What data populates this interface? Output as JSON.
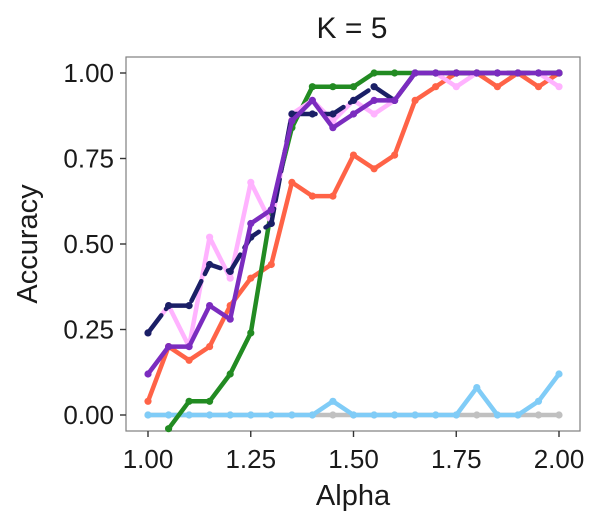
{
  "chart_data": {
    "type": "line",
    "title": "K = 5",
    "xlabel": "Alpha",
    "ylabel": "Accuracy",
    "xlim": [
      0.975,
      2.025
    ],
    "ylim": [
      -0.04,
      1.04
    ],
    "x_ticks": [
      1.0,
      1.25,
      1.5,
      1.75,
      2.0
    ],
    "x_tick_labels": [
      "1.00",
      "1.25",
      "1.50",
      "1.75",
      "2.00"
    ],
    "y_ticks": [
      0.0,
      0.25,
      0.5,
      0.75,
      1.0
    ],
    "y_tick_labels": [
      "0.00",
      "0.25",
      "0.50",
      "0.75",
      "1.00"
    ],
    "grid": false,
    "legend": "none",
    "x": [
      1.0,
      1.05,
      1.1,
      1.15,
      1.2,
      1.25,
      1.3,
      1.35,
      1.4,
      1.45,
      1.5,
      1.55,
      1.6,
      1.65,
      1.7,
      1.75,
      1.8,
      1.85,
      1.9,
      1.95,
      2.0
    ],
    "series": [
      {
        "color": "#c0c0c0",
        "dashed": false,
        "values": [
          0,
          0,
          0,
          0,
          0,
          0,
          0,
          0,
          0,
          0,
          0,
          0,
          0,
          0,
          0,
          0,
          0,
          0,
          0,
          0,
          0
        ]
      },
      {
        "color": "#80ccf7",
        "dashed": false,
        "values": [
          0,
          0,
          0,
          0,
          0,
          0,
          0,
          0,
          0,
          0.04,
          0,
          0,
          0,
          0,
          0,
          0,
          0.08,
          0,
          0,
          0.04,
          0.12
        ]
      },
      {
        "color": "#ff6347",
        "dashed": false,
        "values": [
          0.04,
          0.2,
          0.16,
          0.2,
          0.32,
          0.4,
          0.44,
          0.68,
          0.64,
          0.64,
          0.76,
          0.72,
          0.76,
          0.92,
          0.96,
          1.0,
          1.0,
          0.96,
          1.0,
          0.96,
          1.0
        ]
      },
      {
        "color": "#228b22",
        "dashed": false,
        "values": [
          null,
          -0.04,
          0.04,
          0.04,
          0.12,
          0.24,
          0.6,
          0.84,
          0.96,
          0.96,
          0.96,
          1.0,
          1.0,
          1.0,
          1.0,
          1.0,
          1.0,
          1.0,
          1.0,
          1.0,
          1.0
        ]
      },
      {
        "color": "#ffb3ff",
        "dashed": false,
        "values": [
          0.24,
          0.32,
          0.2,
          0.52,
          0.4,
          0.68,
          0.56,
          0.88,
          0.92,
          0.86,
          0.92,
          0.88,
          0.92,
          1.0,
          1.0,
          0.96,
          1.0,
          1.0,
          1.0,
          1.0,
          0.96
        ]
      },
      {
        "color": "#1a1f66",
        "dashed": true,
        "values": [
          0.24,
          0.32,
          0.32,
          0.44,
          0.42,
          0.52,
          0.56,
          0.88,
          0.88,
          0.88,
          0.92,
          0.96,
          0.92,
          1.0,
          1.0,
          1.0,
          1.0,
          1.0,
          1.0,
          1.0,
          1.0
        ]
      },
      {
        "color": "#7b2cbf",
        "dashed": false,
        "values": [
          0.12,
          0.2,
          0.2,
          0.32,
          0.28,
          0.56,
          0.6,
          0.86,
          0.92,
          0.84,
          0.88,
          0.92,
          0.92,
          1.0,
          1.0,
          1.0,
          1.0,
          1.0,
          1.0,
          1.0,
          1.0
        ]
      }
    ]
  }
}
